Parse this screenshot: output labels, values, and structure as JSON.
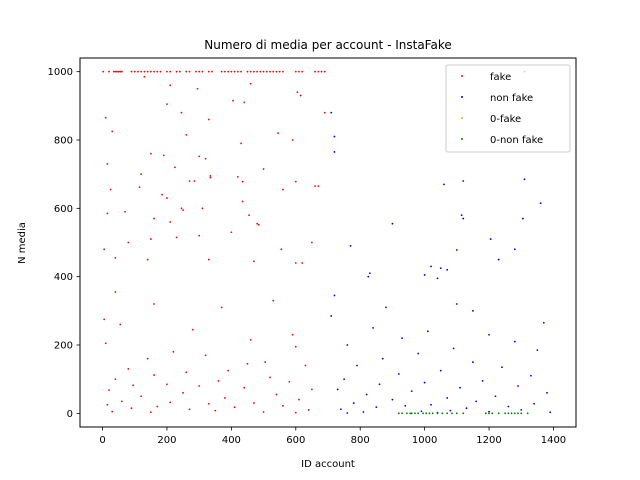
{
  "chart_data": {
    "type": "scatter",
    "title": "Numero di media per account - InstaFake",
    "xlabel": "ID account",
    "ylabel": "N media",
    "xlim": [
      -70,
      1470
    ],
    "ylim": [
      -40,
      1040
    ],
    "xticks": [
      0,
      200,
      400,
      600,
      800,
      1000,
      1200,
      1400
    ],
    "yticks": [
      0,
      200,
      400,
      600,
      800,
      1000
    ],
    "grid": false,
    "legend": {
      "placement": "top-right",
      "entries": [
        "fake",
        "non fake",
        "0-fake",
        "0-non fake"
      ]
    },
    "series": [
      {
        "name": "fake",
        "color": "#ff0000",
        "id_range": [
          0,
          699
        ],
        "approx_count": 700,
        "points": [
          [
            2,
            1000
          ],
          [
            20,
            1000
          ],
          [
            35,
            1000
          ],
          [
            40,
            1000
          ],
          [
            45,
            1000
          ],
          [
            50,
            1000
          ],
          [
            55,
            1000
          ],
          [
            60,
            1000
          ],
          [
            90,
            1000
          ],
          [
            100,
            1000
          ],
          [
            110,
            1000
          ],
          [
            120,
            1000
          ],
          [
            130,
            1000
          ],
          [
            140,
            1000
          ],
          [
            150,
            1000
          ],
          [
            160,
            1000
          ],
          [
            170,
            1000
          ],
          [
            180,
            1000
          ],
          [
            200,
            1000
          ],
          [
            210,
            1000
          ],
          [
            230,
            1000
          ],
          [
            240,
            1000
          ],
          [
            260,
            1000
          ],
          [
            270,
            1000
          ],
          [
            290,
            1000
          ],
          [
            300,
            1000
          ],
          [
            310,
            1000
          ],
          [
            330,
            1000
          ],
          [
            340,
            1000
          ],
          [
            370,
            1000
          ],
          [
            380,
            1000
          ],
          [
            390,
            1000
          ],
          [
            400,
            1000
          ],
          [
            410,
            1000
          ],
          [
            420,
            1000
          ],
          [
            430,
            1000
          ],
          [
            450,
            1000
          ],
          [
            460,
            1000
          ],
          [
            470,
            1000
          ],
          [
            480,
            1000
          ],
          [
            490,
            1000
          ],
          [
            500,
            1000
          ],
          [
            510,
            1000
          ],
          [
            520,
            1000
          ],
          [
            530,
            1000
          ],
          [
            540,
            1000
          ],
          [
            550,
            1000
          ],
          [
            560,
            1000
          ],
          [
            600,
            1000
          ],
          [
            610,
            1000
          ],
          [
            620,
            1000
          ],
          [
            660,
            1000
          ],
          [
            670,
            1000
          ],
          [
            680,
            1000
          ],
          [
            690,
            1000
          ],
          [
            130,
            985
          ],
          [
            460,
            965
          ],
          [
            210,
            960
          ],
          [
            295,
            950
          ],
          [
            605,
            940
          ],
          [
            615,
            930
          ],
          [
            405,
            915
          ],
          [
            440,
            910
          ],
          [
            200,
            905
          ],
          [
            245,
            880
          ],
          [
            690,
            880
          ],
          [
            10,
            865
          ],
          [
            330,
            860
          ],
          [
            30,
            825
          ],
          [
            545,
            820
          ],
          [
            260,
            815
          ],
          [
            590,
            800
          ],
          [
            430,
            790
          ],
          [
            150,
            760
          ],
          [
            190,
            755
          ],
          [
            300,
            752
          ],
          [
            320,
            745
          ],
          [
            15,
            730
          ],
          [
            225,
            720
          ],
          [
            500,
            715
          ],
          [
            120,
            700
          ],
          [
            335,
            695
          ],
          [
            420,
            692
          ],
          [
            335,
            690
          ],
          [
            270,
            680
          ],
          [
            285,
            680
          ],
          [
            435,
            678
          ],
          [
            600,
            678
          ],
          [
            660,
            665
          ],
          [
            670,
            665
          ],
          [
            115,
            662
          ],
          [
            25,
            655
          ],
          [
            560,
            655
          ],
          [
            185,
            640
          ],
          [
            200,
            630
          ],
          [
            435,
            620
          ],
          [
            245,
            600
          ],
          [
            310,
            600
          ],
          [
            250,
            595
          ],
          [
            70,
            590
          ],
          [
            15,
            585
          ],
          [
            455,
            580
          ],
          [
            160,
            570
          ],
          [
            210,
            560
          ],
          [
            480,
            555
          ],
          [
            485,
            552
          ],
          [
            400,
            530
          ],
          [
            300,
            520
          ],
          [
            230,
            515
          ],
          [
            150,
            510
          ],
          [
            80,
            500
          ],
          [
            650,
            500
          ],
          [
            555,
            480
          ],
          [
            5,
            480
          ],
          [
            40,
            455
          ],
          [
            140,
            450
          ],
          [
            330,
            450
          ],
          [
            470,
            445
          ],
          [
            620,
            440
          ],
          [
            600,
            440
          ],
          [
            40,
            355
          ],
          [
            530,
            330
          ],
          [
            160,
            320
          ],
          [
            370,
            310
          ],
          [
            5,
            275
          ],
          [
            55,
            260
          ],
          [
            280,
            245
          ],
          [
            590,
            230
          ],
          [
            460,
            215
          ],
          [
            10,
            205
          ],
          [
            600,
            195
          ],
          [
            220,
            180
          ],
          [
            320,
            170
          ],
          [
            140,
            160
          ],
          [
            505,
            150
          ],
          [
            450,
            145
          ],
          [
            630,
            140
          ],
          [
            80,
            130
          ],
          [
            390,
            125
          ],
          [
            260,
            120
          ],
          [
            160,
            112
          ],
          [
            520,
            105
          ],
          [
            40,
            100
          ],
          [
            360,
            95
          ],
          [
            580,
            92
          ],
          [
            200,
            85
          ],
          [
            95,
            82
          ],
          [
            300,
            80
          ],
          [
            440,
            75
          ],
          [
            650,
            70
          ],
          [
            20,
            68
          ],
          [
            250,
            60
          ],
          [
            540,
            55
          ],
          [
            120,
            50
          ],
          [
            380,
            45
          ],
          [
            610,
            40
          ],
          [
            60,
            35
          ],
          [
            210,
            32
          ],
          [
            470,
            30
          ],
          [
            330,
            28
          ],
          [
            15,
            25
          ],
          [
            560,
            22
          ],
          [
            170,
            20
          ],
          [
            410,
            18
          ],
          [
            90,
            15
          ],
          [
            270,
            12
          ],
          [
            640,
            10
          ],
          [
            350,
            8
          ],
          [
            30,
            5
          ],
          [
            500,
            4
          ],
          [
            150,
            3
          ],
          [
            600,
            2
          ]
        ]
      },
      {
        "name": "non fake",
        "color": "#0000ff",
        "id_range": [
          700,
          1399
        ],
        "approx_count": 700,
        "points": [
          [
            1310,
            1000
          ],
          [
            710,
            880
          ],
          [
            720,
            810
          ],
          [
            720,
            765
          ],
          [
            1120,
            680
          ],
          [
            1310,
            685
          ],
          [
            1060,
            670
          ],
          [
            1360,
            615
          ],
          [
            1115,
            580
          ],
          [
            1120,
            570
          ],
          [
            1305,
            570
          ],
          [
            900,
            555
          ],
          [
            1205,
            510
          ],
          [
            770,
            490
          ],
          [
            1280,
            480
          ],
          [
            1100,
            478
          ],
          [
            1230,
            450
          ],
          [
            1020,
            430
          ],
          [
            1050,
            425
          ],
          [
            1070,
            420
          ],
          [
            830,
            410
          ],
          [
            1000,
            405
          ],
          [
            825,
            400
          ],
          [
            1040,
            395
          ],
          [
            880,
            310
          ],
          [
            1100,
            320
          ],
          [
            1150,
            300
          ],
          [
            720,
            345
          ],
          [
            710,
            285
          ],
          [
            1370,
            265
          ],
          [
            840,
            250
          ],
          [
            1010,
            240
          ],
          [
            1200,
            230
          ],
          [
            930,
            220
          ],
          [
            1280,
            210
          ],
          [
            760,
            200
          ],
          [
            1090,
            190
          ],
          [
            1350,
            185
          ],
          [
            980,
            175
          ],
          [
            870,
            160
          ],
          [
            1150,
            150
          ],
          [
            790,
            140
          ],
          [
            1240,
            135
          ],
          [
            1050,
            125
          ],
          [
            920,
            115
          ],
          [
            1330,
            110
          ],
          [
            750,
            100
          ],
          [
            1180,
            95
          ],
          [
            1000,
            90
          ],
          [
            860,
            85
          ],
          [
            1290,
            80
          ],
          [
            1110,
            75
          ],
          [
            730,
            70
          ],
          [
            960,
            65
          ],
          [
            1380,
            60
          ],
          [
            820,
            55
          ],
          [
            1220,
            50
          ],
          [
            1070,
            45
          ],
          [
            900,
            40
          ],
          [
            1160,
            35
          ],
          [
            780,
            30
          ],
          [
            1340,
            28
          ],
          [
            1020,
            25
          ],
          [
            940,
            22
          ],
          [
            1260,
            20
          ],
          [
            850,
            18
          ],
          [
            1130,
            15
          ],
          [
            740,
            12
          ],
          [
            1300,
            10
          ],
          [
            1080,
            8
          ],
          [
            990,
            6
          ],
          [
            1200,
            5
          ],
          [
            810,
            4
          ],
          [
            1390,
            3
          ],
          [
            1040,
            2
          ],
          [
            760,
            1
          ]
        ]
      },
      {
        "name": "0-fake",
        "color": "#ffa500",
        "id_range": [
          0,
          699
        ],
        "approx_count": 0,
        "points": []
      },
      {
        "name": "0-non fake",
        "color": "#008000",
        "id_range": [
          700,
          1399
        ],
        "approx_count": 70,
        "points": [
          [
            920,
            0
          ],
          [
            930,
            0
          ],
          [
            945,
            0
          ],
          [
            955,
            0
          ],
          [
            960,
            0
          ],
          [
            970,
            0
          ],
          [
            980,
            0
          ],
          [
            995,
            0
          ],
          [
            1005,
            0
          ],
          [
            1015,
            0
          ],
          [
            1025,
            0
          ],
          [
            1040,
            0
          ],
          [
            1055,
            0
          ],
          [
            1070,
            0
          ],
          [
            1085,
            0
          ],
          [
            1100,
            0
          ],
          [
            1120,
            0
          ],
          [
            1190,
            0
          ],
          [
            1200,
            0
          ],
          [
            1210,
            0
          ],
          [
            1230,
            0
          ],
          [
            1250,
            0
          ],
          [
            1260,
            0
          ],
          [
            1270,
            0
          ],
          [
            1280,
            0
          ],
          [
            1290,
            0
          ],
          [
            1300,
            0
          ],
          [
            1320,
            0
          ]
        ]
      }
    ]
  }
}
